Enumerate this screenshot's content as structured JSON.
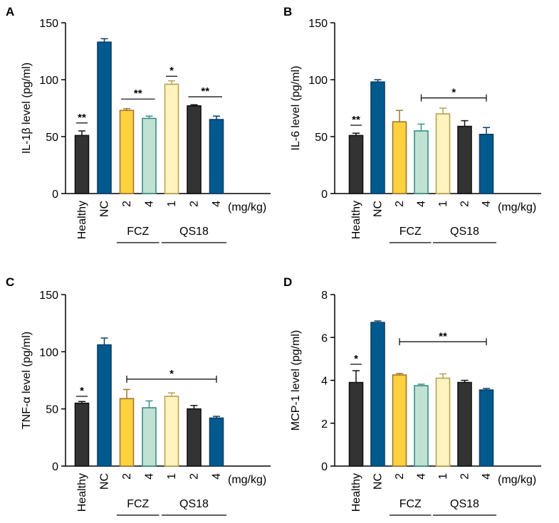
{
  "chart_data": [
    {
      "panel": "A",
      "type": "bar",
      "ylabel": "IL-1β level (pg/ml)",
      "ylim": [
        0,
        150
      ],
      "yticks": [
        0,
        50,
        100,
        150
      ],
      "unit_label": "(mg/kg)",
      "categories": [
        "Healthy",
        "NC",
        "2",
        "4",
        "1",
        "2",
        "4"
      ],
      "values": [
        51,
        133,
        73,
        66,
        96,
        77,
        65
      ],
      "errors": [
        4,
        3,
        1.5,
        2,
        3,
        1,
        3
      ],
      "groups": [
        {
          "label": "FCZ",
          "from": 2,
          "to": 3
        },
        {
          "label": "QS18",
          "from": 4,
          "to": 6
        }
      ],
      "significance": [
        {
          "label": "**",
          "from": 0,
          "to": 0,
          "y": 62
        },
        {
          "label": "**",
          "from": 2,
          "to": 3,
          "y": 83
        },
        {
          "label": "*",
          "from": 4,
          "to": 4,
          "y": 103
        },
        {
          "label": "**",
          "from": 5,
          "to": 6,
          "y": 85
        }
      ]
    },
    {
      "panel": "B",
      "type": "bar",
      "ylabel": "IL-6 level (pg/ml)",
      "ylim": [
        0,
        150
      ],
      "yticks": [
        0,
        50,
        100,
        150
      ],
      "unit_label": "(mg/kg)",
      "categories": [
        "Healthy",
        "NC",
        "2",
        "4",
        "1",
        "2",
        "4"
      ],
      "values": [
        51,
        98,
        63,
        55,
        70,
        59,
        52
      ],
      "errors": [
        2,
        2,
        10,
        6,
        5,
        5,
        6
      ],
      "groups": [
        {
          "label": "FCZ",
          "from": 2,
          "to": 3
        },
        {
          "label": "QS18",
          "from": 4,
          "to": 6
        }
      ],
      "significance": [
        {
          "label": "**",
          "from": 0,
          "to": 0,
          "y": 60
        },
        {
          "label": "*",
          "from": 3,
          "to": 6,
          "y": 84
        }
      ]
    },
    {
      "panel": "C",
      "type": "bar",
      "ylabel": "TNF-α level (pg/ml)",
      "ylim": [
        0,
        150
      ],
      "yticks": [
        0,
        50,
        100,
        150
      ],
      "unit_label": "(mg/kg)",
      "categories": [
        "Healthy",
        "NC",
        "2",
        "4",
        "1",
        "2",
        "4"
      ],
      "values": [
        55,
        106,
        59,
        51,
        61,
        50,
        42
      ],
      "errors": [
        1.5,
        6,
        8,
        6,
        3,
        3,
        1.5
      ],
      "groups": [
        {
          "label": "FCZ",
          "from": 2,
          "to": 3
        },
        {
          "label": "QS18",
          "from": 4,
          "to": 6
        }
      ],
      "significance": [
        {
          "label": "*",
          "from": 0,
          "to": 0,
          "y": 61
        },
        {
          "label": "*",
          "from": 2,
          "to": 6,
          "y": 76
        }
      ]
    },
    {
      "panel": "D",
      "type": "bar",
      "ylabel": "MCP-1 level (pg/ml)",
      "ylim": [
        0,
        8
      ],
      "yticks": [
        0,
        2,
        4,
        6,
        8
      ],
      "unit_label": "(mg/kg)",
      "categories": [
        "Healthy",
        "NC",
        "2",
        "4",
        "1",
        "2",
        "4"
      ],
      "values": [
        3.9,
        6.7,
        4.25,
        3.75,
        4.1,
        3.9,
        3.55
      ],
      "errors": [
        0.55,
        0.07,
        0.07,
        0.07,
        0.2,
        0.1,
        0.07
      ],
      "groups": [
        {
          "label": "FCZ",
          "from": 2,
          "to": 3
        },
        {
          "label": "QS18",
          "from": 4,
          "to": 6
        }
      ],
      "significance": [
        {
          "label": "*",
          "from": 0,
          "to": 0,
          "y": 4.75
        },
        {
          "label": "**",
          "from": 2,
          "to": 6,
          "y": 5.8
        }
      ]
    }
  ],
  "colors": {
    "fill": [
      "#333333",
      "#005a8e",
      "#ffd13f",
      "#bfe2d3",
      "#fff3bf",
      "#333333",
      "#005a8e"
    ],
    "stroke": [
      "#111111",
      "#0c3e66",
      "#a0762e",
      "#3a8d84",
      "#b7a250",
      "#111111",
      "#0c3e66"
    ]
  }
}
